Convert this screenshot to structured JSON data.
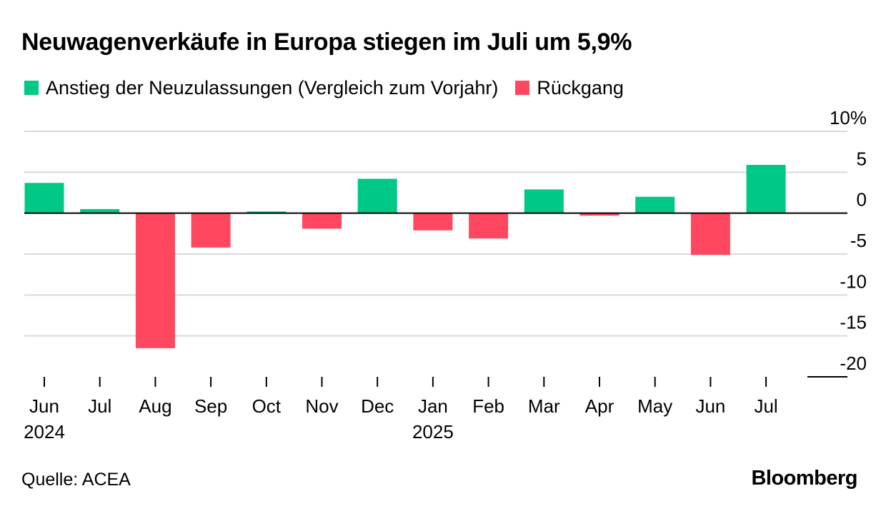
{
  "title": "Neuwagenverkäufe in Europa stiegen im Juli um 5,9%",
  "source": "Quelle: ACEA",
  "brand": "Bloomberg",
  "colors": {
    "increase": "#00c887",
    "decrease": "#ff4760",
    "grid": "#d9d9d9",
    "axis": "#000000"
  },
  "chart_data": {
    "type": "bar",
    "title": "Neuwagenverkäufe in Europa stiegen im Juli um 5,9%",
    "legend": [
      {
        "name": "Anstieg der Neuzulassungen (Vergleich zum Vorjahr)",
        "color": "#00c887"
      },
      {
        "name": "Rückgang",
        "color": "#ff4760"
      }
    ],
    "legend_placement": "top-left",
    "categories": [
      "Jun",
      "Jul",
      "Aug",
      "Sep",
      "Oct",
      "Nov",
      "Dec",
      "Jan",
      "Feb",
      "Mar",
      "Apr",
      "May",
      "Jun",
      "Jul"
    ],
    "year_labels": [
      {
        "index": 0,
        "label": "2024"
      },
      {
        "index": 7,
        "label": "2025"
      }
    ],
    "values": [
      3.7,
      0.5,
      -16.5,
      -4.2,
      0.2,
      -1.9,
      4.2,
      -2.1,
      -3.1,
      2.9,
      -0.3,
      2.0,
      -5.1,
      5.9
    ],
    "ylim": [
      -20,
      10
    ],
    "yticks": [
      10,
      5,
      0,
      -5,
      -10,
      -15,
      -20
    ],
    "ytick_labels": [
      "10%",
      "5",
      "0",
      "-5",
      "-10",
      "-15",
      "-20"
    ],
    "y_axis_position": "right",
    "grid": true,
    "xlabel": "",
    "ylabel": ""
  }
}
